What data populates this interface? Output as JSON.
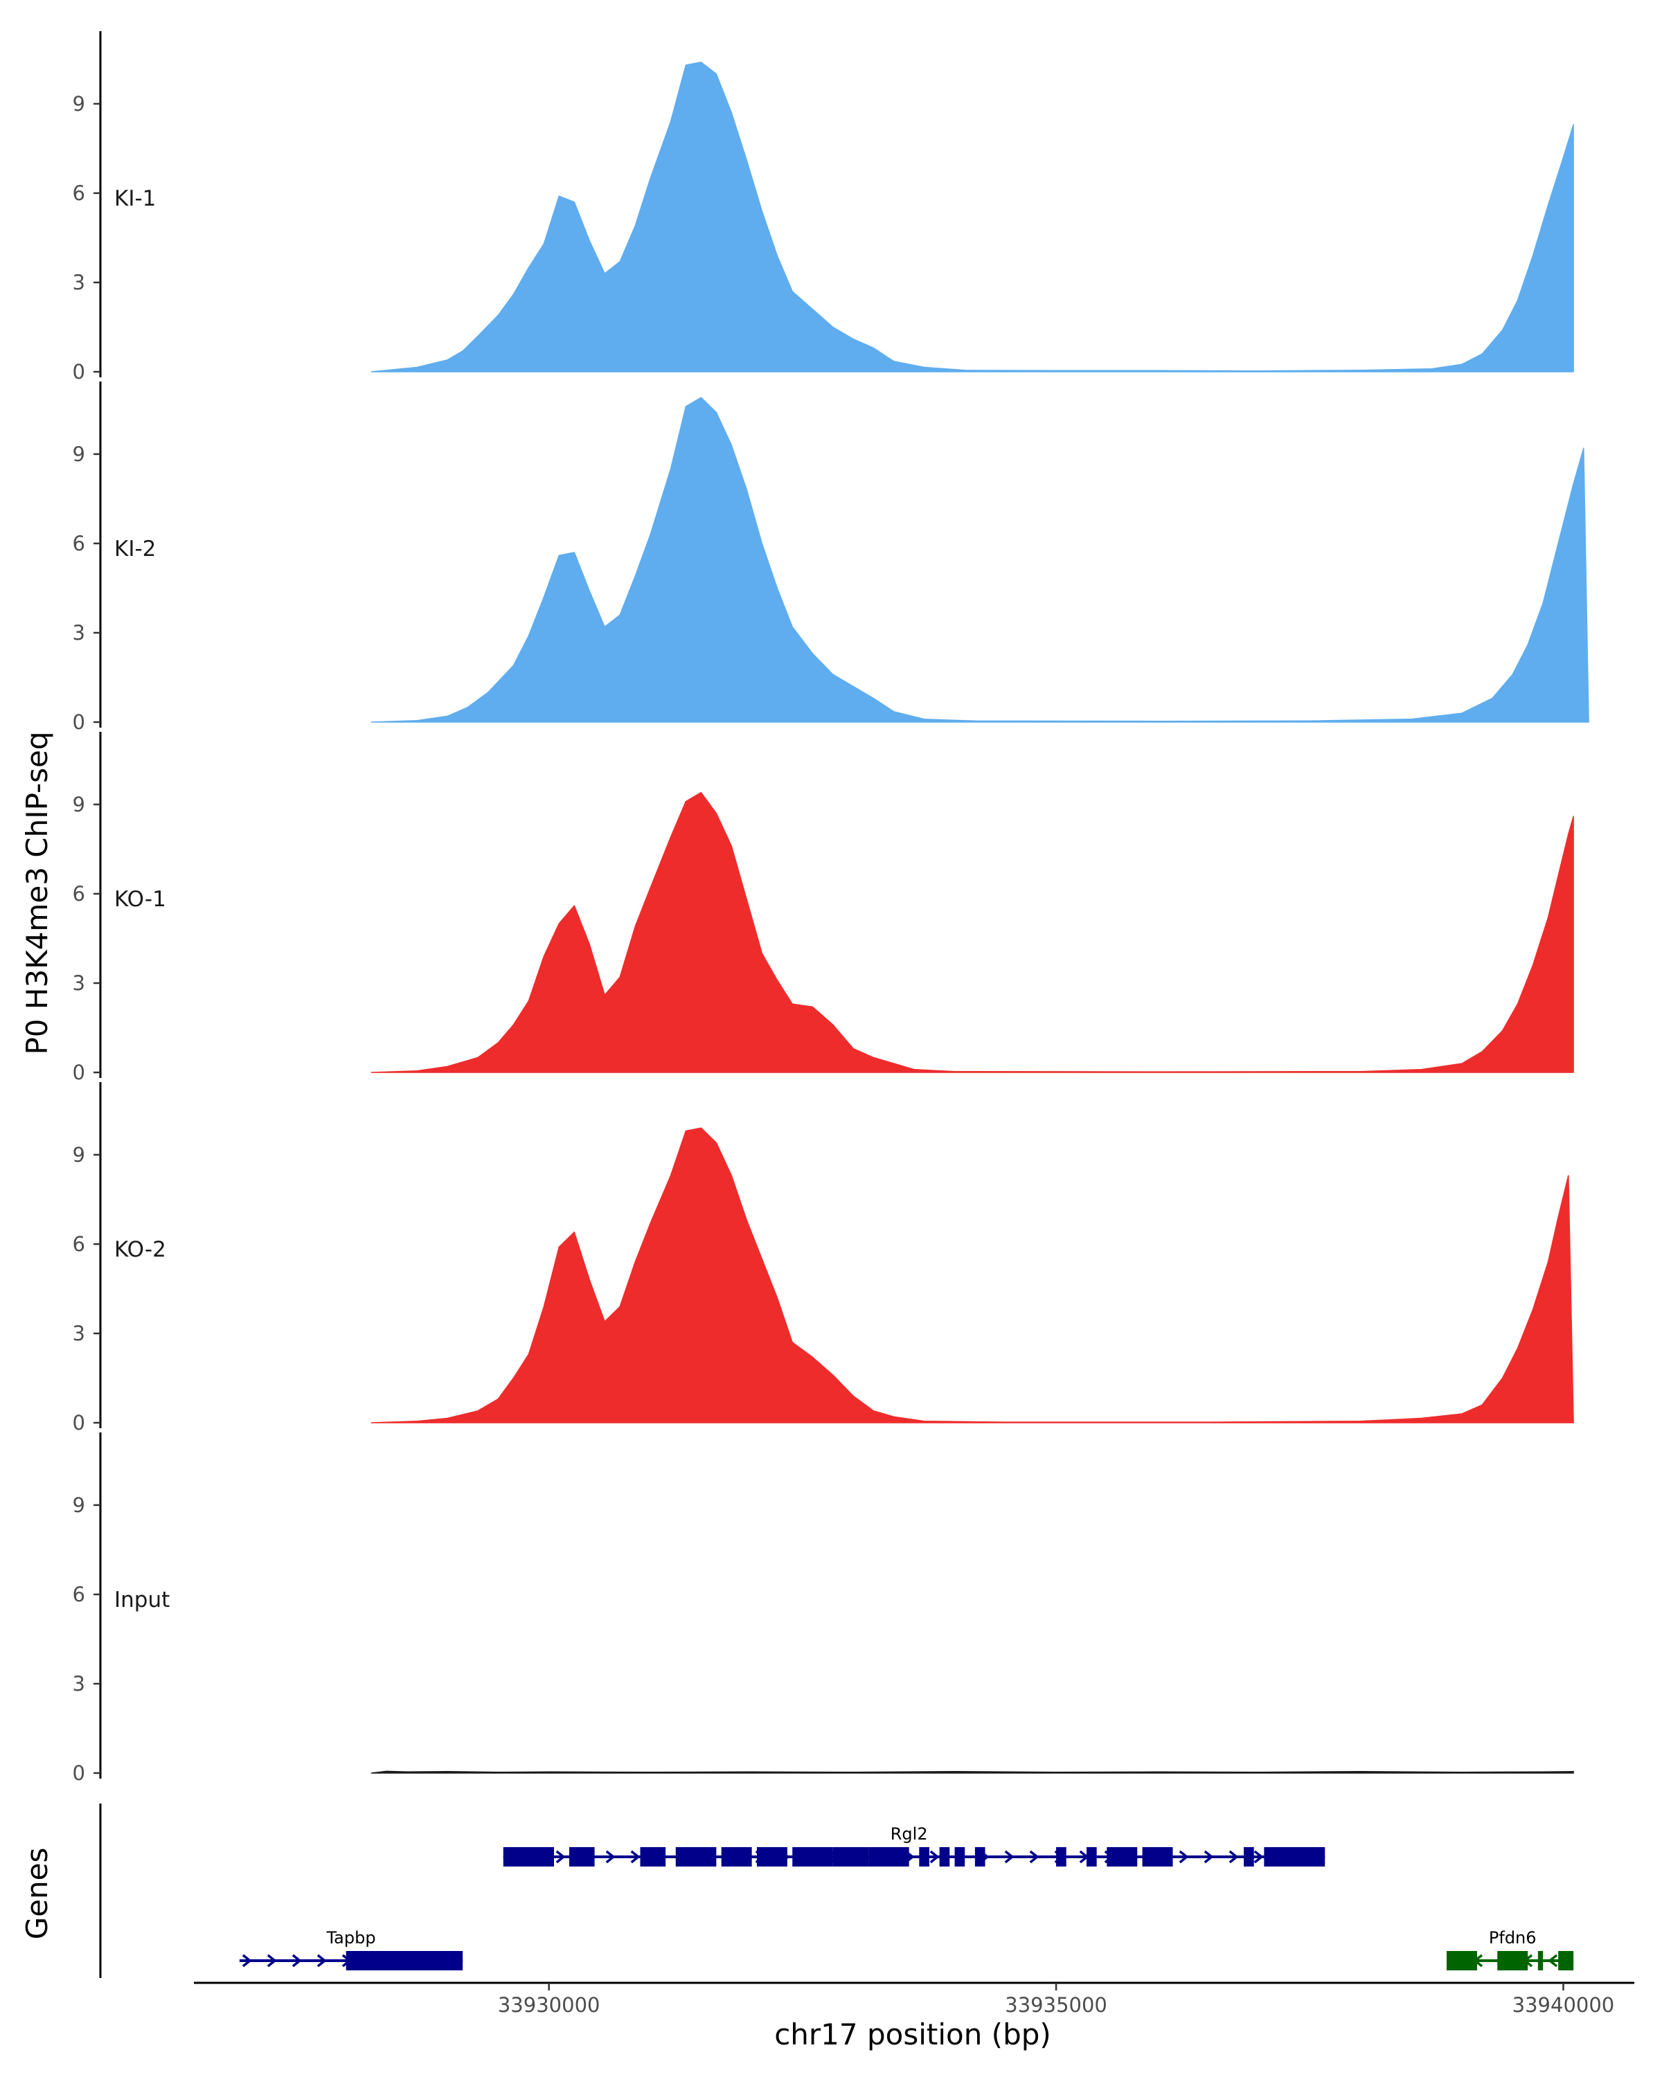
{
  "chart_data": {
    "type": "area",
    "ylabel": "P0 H3K4me3 ChIP-seq",
    "xlabel": "chr17 position (bp)",
    "xlim": [
      33926500,
      33940700
    ],
    "ylim": [
      0,
      11.3
    ],
    "y_ticks": [
      0,
      3,
      6,
      9
    ],
    "x_ticks": [
      {
        "value": 33930000,
        "label": "33930000"
      },
      {
        "value": 33935000,
        "label": "33935000"
      },
      {
        "value": 33940000,
        "label": "33940000"
      }
    ],
    "tracks": [
      {
        "name": "KI-1",
        "color": "#5FADEE",
        "points": [
          [
            33928250,
            0
          ],
          [
            33928400,
            0.05
          ],
          [
            33928700,
            0.15
          ],
          [
            33929000,
            0.4
          ],
          [
            33929150,
            0.7
          ],
          [
            33929300,
            1.2
          ],
          [
            33929500,
            1.9
          ],
          [
            33929650,
            2.6
          ],
          [
            33929800,
            3.5
          ],
          [
            33929950,
            4.3
          ],
          [
            33930100,
            5.9
          ],
          [
            33930250,
            5.7
          ],
          [
            33930400,
            4.4
          ],
          [
            33930550,
            3.3
          ],
          [
            33930700,
            3.7
          ],
          [
            33930850,
            4.9
          ],
          [
            33931000,
            6.5
          ],
          [
            33931200,
            8.4
          ],
          [
            33931350,
            10.3
          ],
          [
            33931500,
            10.4
          ],
          [
            33931650,
            10.0
          ],
          [
            33931800,
            8.7
          ],
          [
            33931950,
            7.1
          ],
          [
            33932100,
            5.4
          ],
          [
            33932250,
            3.9
          ],
          [
            33932400,
            2.7
          ],
          [
            33932600,
            2.1
          ],
          [
            33932800,
            1.5
          ],
          [
            33933000,
            1.1
          ],
          [
            33933200,
            0.8
          ],
          [
            33933400,
            0.35
          ],
          [
            33933700,
            0.15
          ],
          [
            33934100,
            0.05
          ],
          [
            33935000,
            0.04
          ],
          [
            33936000,
            0.04
          ],
          [
            33937000,
            0.03
          ],
          [
            33938000,
            0.05
          ],
          [
            33938700,
            0.1
          ],
          [
            33939000,
            0.25
          ],
          [
            33939200,
            0.6
          ],
          [
            33939400,
            1.4
          ],
          [
            33939550,
            2.4
          ],
          [
            33939700,
            3.9
          ],
          [
            33939850,
            5.6
          ],
          [
            33940000,
            7.2
          ],
          [
            33940100,
            8.3
          ],
          [
            33940100,
            0
          ]
        ]
      },
      {
        "name": "KI-2",
        "color": "#5FADEE",
        "points": [
          [
            33928250,
            0
          ],
          [
            33928700,
            0.05
          ],
          [
            33929000,
            0.2
          ],
          [
            33929200,
            0.5
          ],
          [
            33929400,
            1.0
          ],
          [
            33929650,
            1.9
          ],
          [
            33929800,
            2.9
          ],
          [
            33929950,
            4.2
          ],
          [
            33930100,
            5.6
          ],
          [
            33930250,
            5.7
          ],
          [
            33930400,
            4.4
          ],
          [
            33930550,
            3.2
          ],
          [
            33930700,
            3.6
          ],
          [
            33930850,
            4.9
          ],
          [
            33931000,
            6.3
          ],
          [
            33931200,
            8.5
          ],
          [
            33931350,
            10.6
          ],
          [
            33931500,
            10.9
          ],
          [
            33931650,
            10.4
          ],
          [
            33931800,
            9.3
          ],
          [
            33931950,
            7.8
          ],
          [
            33932100,
            6.0
          ],
          [
            33932250,
            4.5
          ],
          [
            33932400,
            3.2
          ],
          [
            33932600,
            2.3
          ],
          [
            33932800,
            1.6
          ],
          [
            33933000,
            1.2
          ],
          [
            33933200,
            0.8
          ],
          [
            33933400,
            0.35
          ],
          [
            33933700,
            0.1
          ],
          [
            33934200,
            0.04
          ],
          [
            33936000,
            0.03
          ],
          [
            33937500,
            0.04
          ],
          [
            33938500,
            0.1
          ],
          [
            33939000,
            0.3
          ],
          [
            33939300,
            0.8
          ],
          [
            33939500,
            1.6
          ],
          [
            33939650,
            2.6
          ],
          [
            33939800,
            4.0
          ],
          [
            33939950,
            6.0
          ],
          [
            33940100,
            8.0
          ],
          [
            33940200,
            9.2
          ],
          [
            33940250,
            0
          ]
        ]
      },
      {
        "name": "KO-1",
        "color": "#EE2C2C",
        "points": [
          [
            33928250,
            0
          ],
          [
            33928700,
            0.05
          ],
          [
            33929000,
            0.2
          ],
          [
            33929300,
            0.5
          ],
          [
            33929500,
            1.0
          ],
          [
            33929650,
            1.6
          ],
          [
            33929800,
            2.4
          ],
          [
            33929950,
            3.9
          ],
          [
            33930100,
            5.0
          ],
          [
            33930250,
            5.6
          ],
          [
            33930400,
            4.3
          ],
          [
            33930550,
            2.6
          ],
          [
            33930700,
            3.2
          ],
          [
            33930850,
            4.9
          ],
          [
            33931000,
            6.2
          ],
          [
            33931200,
            7.9
          ],
          [
            33931350,
            9.1
          ],
          [
            33931500,
            9.4
          ],
          [
            33931650,
            8.7
          ],
          [
            33931800,
            7.6
          ],
          [
            33931950,
            5.8
          ],
          [
            33932100,
            4.0
          ],
          [
            33932250,
            3.1
          ],
          [
            33932400,
            2.3
          ],
          [
            33932600,
            2.2
          ],
          [
            33932800,
            1.6
          ],
          [
            33933000,
            0.8
          ],
          [
            33933200,
            0.5
          ],
          [
            33933400,
            0.3
          ],
          [
            33933600,
            0.1
          ],
          [
            33934000,
            0.03
          ],
          [
            33936000,
            0.02
          ],
          [
            33938000,
            0.03
          ],
          [
            33938600,
            0.1
          ],
          [
            33939000,
            0.3
          ],
          [
            33939200,
            0.7
          ],
          [
            33939400,
            1.4
          ],
          [
            33939550,
            2.3
          ],
          [
            33939700,
            3.6
          ],
          [
            33939850,
            5.2
          ],
          [
            33939950,
            6.6
          ],
          [
            33940050,
            8.0
          ],
          [
            33940100,
            8.6
          ],
          [
            33940100,
            0
          ]
        ]
      },
      {
        "name": "KO-2",
        "color": "#EE2C2C",
        "points": [
          [
            33928250,
            0
          ],
          [
            33928700,
            0.05
          ],
          [
            33929000,
            0.15
          ],
          [
            33929300,
            0.4
          ],
          [
            33929500,
            0.8
          ],
          [
            33929650,
            1.5
          ],
          [
            33929800,
            2.3
          ],
          [
            33929950,
            3.9
          ],
          [
            33930100,
            5.9
          ],
          [
            33930250,
            6.4
          ],
          [
            33930400,
            4.8
          ],
          [
            33930550,
            3.4
          ],
          [
            33930700,
            3.9
          ],
          [
            33930850,
            5.4
          ],
          [
            33931000,
            6.7
          ],
          [
            33931200,
            8.3
          ],
          [
            33931350,
            9.8
          ],
          [
            33931500,
            9.9
          ],
          [
            33931650,
            9.4
          ],
          [
            33931800,
            8.3
          ],
          [
            33931950,
            6.8
          ],
          [
            33932100,
            5.5
          ],
          [
            33932250,
            4.2
          ],
          [
            33932400,
            2.7
          ],
          [
            33932600,
            2.2
          ],
          [
            33932800,
            1.6
          ],
          [
            33933000,
            0.9
          ],
          [
            33933200,
            0.4
          ],
          [
            33933400,
            0.2
          ],
          [
            33933700,
            0.05
          ],
          [
            33934500,
            0.02
          ],
          [
            33936500,
            0.02
          ],
          [
            33938000,
            0.05
          ],
          [
            33938600,
            0.15
          ],
          [
            33939000,
            0.3
          ],
          [
            33939200,
            0.6
          ],
          [
            33939400,
            1.5
          ],
          [
            33939550,
            2.5
          ],
          [
            33939700,
            3.8
          ],
          [
            33939850,
            5.4
          ],
          [
            33939950,
            6.9
          ],
          [
            33940050,
            8.3
          ],
          [
            33940100,
            0
          ]
        ]
      },
      {
        "name": "Input",
        "color": "#1a1a1a",
        "points": [
          [
            33928250,
            0
          ],
          [
            33928400,
            0.06
          ],
          [
            33928600,
            0.04
          ],
          [
            33929000,
            0.05
          ],
          [
            33929500,
            0.03
          ],
          [
            33930000,
            0.04
          ],
          [
            33931000,
            0.03
          ],
          [
            33932000,
            0.04
          ],
          [
            33933000,
            0.03
          ],
          [
            33934000,
            0.05
          ],
          [
            33935000,
            0.03
          ],
          [
            33936000,
            0.04
          ],
          [
            33937000,
            0.03
          ],
          [
            33938000,
            0.05
          ],
          [
            33939000,
            0.03
          ],
          [
            33939800,
            0.04
          ],
          [
            33940100,
            0.05
          ],
          [
            33940100,
            0
          ]
        ]
      }
    ],
    "genes_label": "Genes",
    "genes": [
      {
        "name": "Rgl2",
        "strand": "+",
        "color": "#00008B",
        "row": 0,
        "start": 33929550,
        "end": 33937650,
        "label_pos": 33933550,
        "exons": [
          [
            33929550,
            33930050
          ],
          [
            33930200,
            33930450
          ],
          [
            33930900,
            33931150
          ],
          [
            33931250,
            33931650
          ],
          [
            33931700,
            33932000
          ],
          [
            33932050,
            33932350
          ],
          [
            33932400,
            33932800
          ],
          [
            33932800,
            33933150
          ],
          [
            33933150,
            33933550
          ],
          [
            33933650,
            33933750
          ],
          [
            33933850,
            33933950
          ],
          [
            33934000,
            33934100
          ],
          [
            33934200,
            33934300
          ],
          [
            33935000,
            33935100
          ],
          [
            33935300,
            33935400
          ],
          [
            33935500,
            33935800
          ],
          [
            33935850,
            33936150
          ],
          [
            33936850,
            33936950
          ],
          [
            33937050,
            33937650
          ]
        ]
      },
      {
        "name": "Tapbp",
        "strand": "+",
        "color": "#00008B",
        "row": 1,
        "start": 33926950,
        "end": 33929150,
        "label_pos": 33928050,
        "exons": [
          [
            33928000,
            33929150
          ]
        ]
      },
      {
        "name": "Pfdn6",
        "strand": "-",
        "color": "#006400",
        "row": 1,
        "start": 33938850,
        "end": 33940100,
        "label_pos": 33939500,
        "exons": [
          [
            33938850,
            33939150
          ],
          [
            33939350,
            33939650
          ],
          [
            33939750,
            33939800
          ],
          [
            33939950,
            33940100
          ]
        ]
      }
    ]
  }
}
